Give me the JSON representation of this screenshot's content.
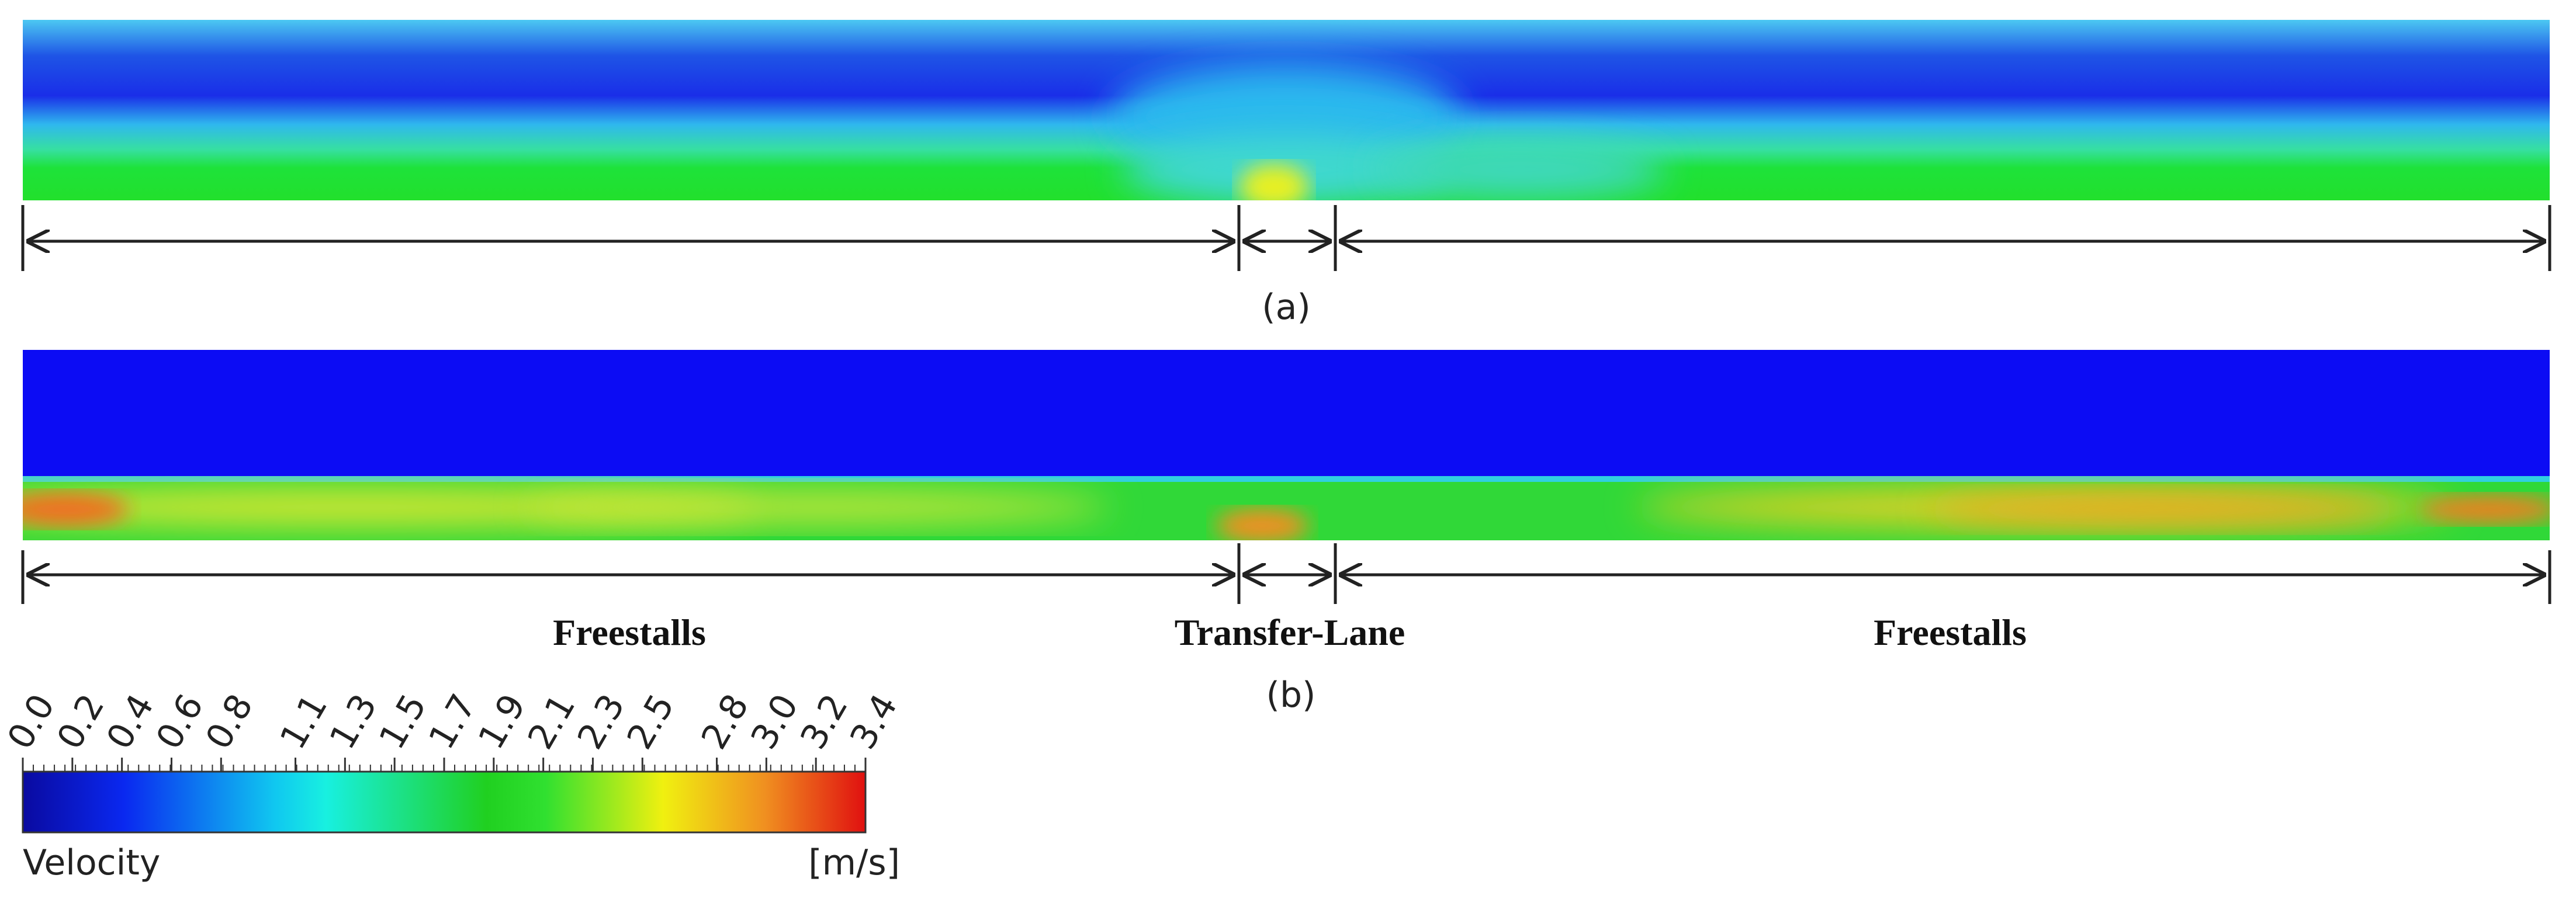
{
  "panels": [
    {
      "label": "(a)"
    },
    {
      "label": "(b)"
    }
  ],
  "sections": [
    "Freestalls",
    "Transfer-Lane",
    "Freestalls"
  ],
  "colorbar": {
    "title": "Velocity",
    "unit": "[m/s]",
    "lim": [
      0,
      3.4
    ],
    "ticks": [
      {
        "value": 0,
        "label": "0.0"
      },
      0.2,
      0.4,
      0.6,
      0.8,
      1.1,
      1.3,
      1.5,
      1.7,
      1.9,
      2.1,
      2.3,
      2.5,
      2.8,
      {
        "value": 3,
        "label": "3.0"
      },
      3.2,
      3.4
    ]
  }
}
